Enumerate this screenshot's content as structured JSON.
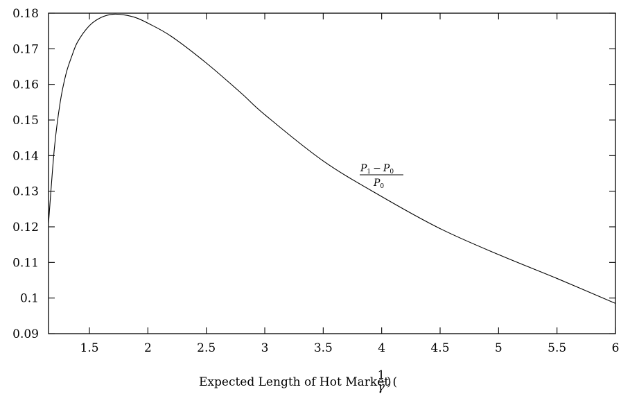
{
  "chart_data": {
    "type": "line",
    "title": "",
    "xlabel": "Expected Length of Hot Market (",
    "xlabel_frac_num": "1",
    "xlabel_frac_den": "γ",
    "xlabel_close": ")",
    "ylabel": "",
    "xlim": [
      1.15,
      6
    ],
    "ylim": [
      0.09,
      0.18
    ],
    "x_ticks": [
      1.5,
      2,
      2.5,
      3,
      3.5,
      4,
      4.5,
      5,
      5.5,
      6
    ],
    "x_tick_labels": [
      "1.5",
      "2",
      "2.5",
      "3",
      "3.5",
      "4",
      "4.5",
      "5",
      "5.5",
      "6"
    ],
    "y_ticks": [
      0.09,
      0.1,
      0.11,
      0.12,
      0.13,
      0.14,
      0.15,
      0.16,
      0.17,
      0.18
    ],
    "y_tick_labels": [
      "0.09",
      "0.1",
      "0.11",
      "0.12",
      "0.13",
      "0.14",
      "0.15",
      "0.16",
      "0.17",
      "0.18"
    ],
    "grid": false,
    "legend": "none",
    "annotation": {
      "num_main": "P",
      "num_sub1": "1",
      "num_minus": "−",
      "num_sub2": "0",
      "den_main": "P",
      "den_sub": "0"
    },
    "series": [
      {
        "x": [
          1.15,
          1.2,
          1.25,
          1.3,
          1.35,
          1.4,
          1.5,
          1.6,
          1.7,
          1.8,
          1.9,
          2.0,
          2.2,
          2.5,
          2.8,
          3.0,
          3.5,
          4.0,
          4.5,
          5.0,
          5.5,
          6.0
        ],
        "y": [
          0.121,
          0.142,
          0.155,
          0.163,
          0.168,
          0.172,
          0.1765,
          0.1788,
          0.1797,
          0.1795,
          0.1787,
          0.1772,
          0.1735,
          0.166,
          0.1575,
          0.1515,
          0.1385,
          0.1285,
          0.1195,
          0.1122,
          0.1055,
          0.0985
        ]
      }
    ]
  }
}
